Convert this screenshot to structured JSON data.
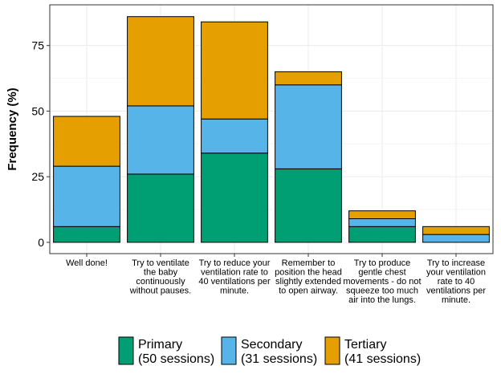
{
  "chart_data": {
    "type": "stacked_bar",
    "y_label": "Frequency (%)",
    "categories": [
      "Well done!",
      "Try to ventilate\nthe baby\ncontinuously\nwithout pauses.",
      "Try to reduce your\nventilation rate to\n40 ventilations per\nminute.",
      "Remember to\nposition the head\nslightly extended\nto open airway.",
      "Try to produce\ngentle chest\nmovements - do not\nsqueeze too much\nair into the lungs.",
      "Try to increase\nyour ventilation\nrate to 40\nventilations per\nminute."
    ],
    "series": [
      {
        "name": "Primary\n(50 sessions)",
        "color": "#009E73",
        "values": [
          6,
          26,
          34,
          28,
          6,
          0
        ]
      },
      {
        "name": "Secondary\n(31 sessions)",
        "color": "#56B4E9",
        "values": [
          23,
          26,
          13,
          32,
          3,
          3
        ]
      },
      {
        "name": "Tertiary\n(41 sessions)",
        "color": "#E69F00",
        "values": [
          19,
          34,
          37,
          5,
          3,
          3
        ]
      }
    ],
    "ylim": [
      -4.3,
      90.5
    ],
    "yticks": [
      0,
      25,
      50,
      75
    ],
    "grid": true,
    "legend": "bottom"
  }
}
